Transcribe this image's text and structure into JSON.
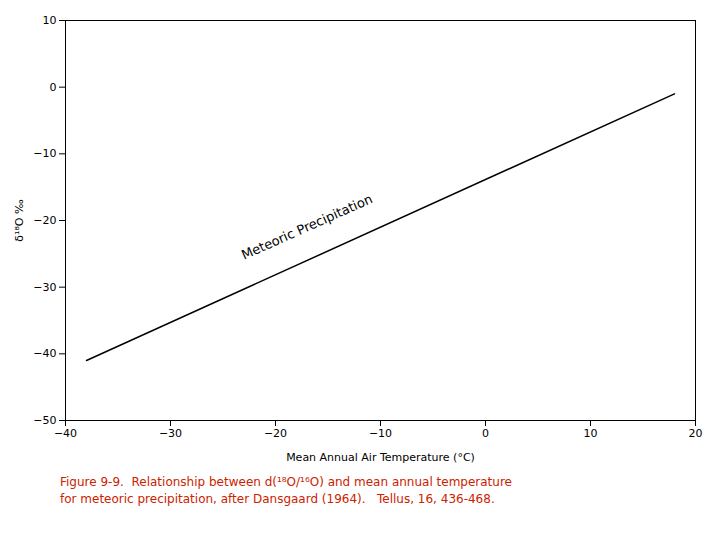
{
  "chart_data": {
    "type": "line",
    "xlabel": "Mean Annual Air Temperature (°C)",
    "ylabel": "δ¹⁸O ‰",
    "x": [
      -38,
      18
    ],
    "values": [
      -41,
      -1
    ],
    "color": "#000000",
    "xlim": [
      -40,
      20
    ],
    "ylim": [
      -50,
      10
    ],
    "xticks": [
      -40,
      -30,
      -20,
      -10,
      0,
      10,
      20
    ],
    "yticks": [
      -50,
      -40,
      -30,
      -20,
      -10,
      0,
      10
    ],
    "grid": false,
    "annotations": [
      {
        "text": "Meteoric Precipitation",
        "x": -17,
        "y": -21
      }
    ],
    "caption": [
      "Figure 9-9.  Relationship between d(¹⁸O/¹⁶O) and mean annual temperature",
      "for meteoric precipitation, after Dansgaard (1964).   Tellus, 16, 436-468."
    ],
    "caption_color": "#cc2200"
  }
}
